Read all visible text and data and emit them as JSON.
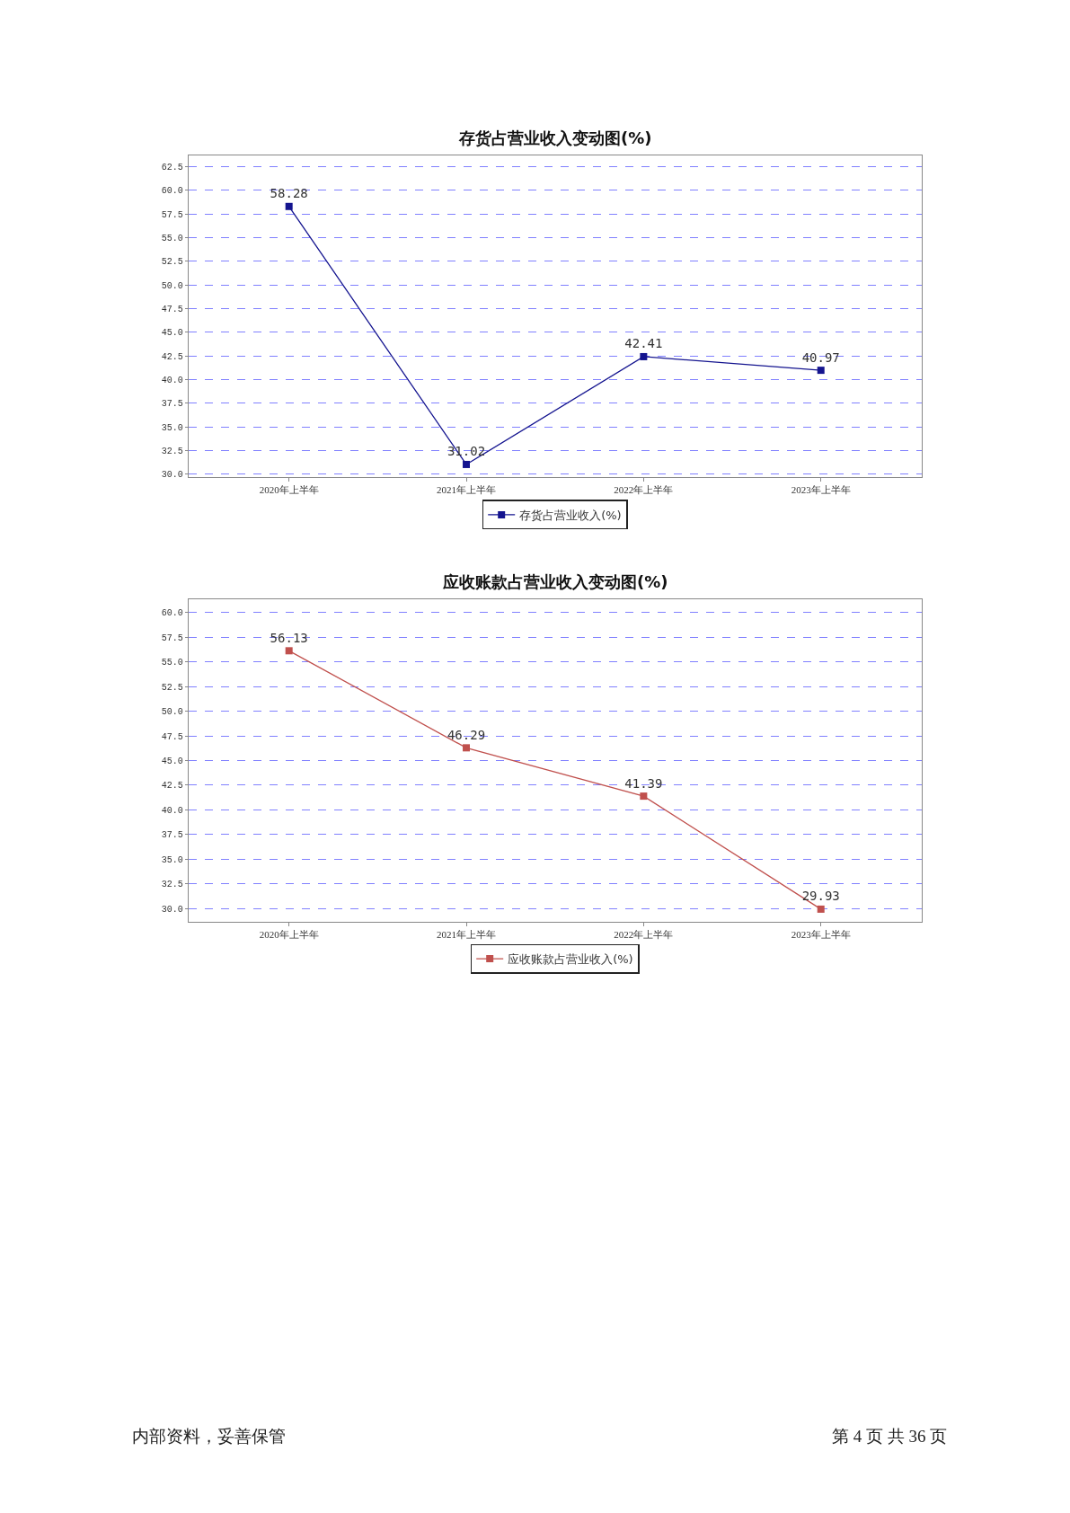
{
  "chart_data": [
    {
      "type": "line",
      "title": "存货占营业收入变动图(%)",
      "categories": [
        "2020年上半年",
        "2021年上半年",
        "2022年上半年",
        "2023年上半年"
      ],
      "series": [
        {
          "name": "存货占营业收入(%)",
          "color": "#14148f",
          "values": [
            58.28,
            31.02,
            42.41,
            40.97
          ]
        }
      ],
      "ylim": [
        29.7,
        63.7
      ],
      "yticks": [
        {
          "value": 30,
          "label": "30.0"
        },
        {
          "value": 32.5,
          "label": "32.5"
        },
        {
          "value": 35,
          "label": "35.0"
        },
        {
          "value": 37.5,
          "label": "37.5"
        },
        {
          "value": 40,
          "label": "40.0"
        },
        {
          "value": 42.5,
          "label": "42.5"
        },
        {
          "value": 45,
          "label": "45.0"
        },
        {
          "value": 47.5,
          "label": "47.5"
        },
        {
          "value": 50,
          "label": "50.0"
        },
        {
          "value": 52.5,
          "label": "52.5"
        },
        {
          "value": 55,
          "label": "55.0"
        },
        {
          "value": 57.5,
          "label": "57.5"
        },
        {
          "value": 60,
          "label": "60.0"
        },
        {
          "value": 62.5,
          "label": "62.5"
        }
      ],
      "grid": "y",
      "legend": "bottom",
      "marker": "square",
      "line_style": "solid",
      "data_labels": true
    },
    {
      "type": "line",
      "title": "应收账款占营业收入变动图(%)",
      "categories": [
        "2020年上半年",
        "2021年上半年",
        "2022年上半年",
        "2023年上半年"
      ],
      "series": [
        {
          "name": "应收账款占营业收入(%)",
          "color": "#c0504d",
          "values": [
            56.13,
            46.29,
            41.39,
            29.93
          ]
        }
      ],
      "ylim": [
        28.63,
        61.37
      ],
      "yticks": [
        {
          "value": 30,
          "label": "30.0"
        },
        {
          "value": 32.5,
          "label": "32.5"
        },
        {
          "value": 35,
          "label": "35.0"
        },
        {
          "value": 37.5,
          "label": "37.5"
        },
        {
          "value": 40,
          "label": "40.0"
        },
        {
          "value": 42.5,
          "label": "42.5"
        },
        {
          "value": 45,
          "label": "45.0"
        },
        {
          "value": 47.5,
          "label": "47.5"
        },
        {
          "value": 50,
          "label": "50.0"
        },
        {
          "value": 52.5,
          "label": "52.5"
        },
        {
          "value": 55,
          "label": "55.0"
        },
        {
          "value": 57.5,
          "label": "57.5"
        },
        {
          "value": 60,
          "label": "60.0"
        }
      ],
      "grid": "y",
      "legend": "bottom",
      "marker": "square",
      "line_style": "solid",
      "data_labels": true
    },
    {
      "type": "other",
      "annotations": [
        "内部资料，妥善保管",
        "第 4 页 共 36 页"
      ]
    }
  ]
}
